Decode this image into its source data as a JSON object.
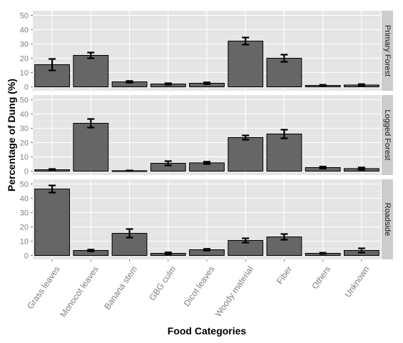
{
  "chart_data": {
    "type": "bar",
    "xlabel": "Food Categories",
    "ylabel": "Percentage of Dung (%)",
    "ylim": [
      0,
      50
    ],
    "yticks": [
      0,
      10,
      20,
      30,
      40,
      50
    ],
    "grid": true,
    "facet": "rows",
    "categories": [
      "Grass leaves",
      "Monocot leaves",
      "Banana stem",
      "GBG culm",
      "Dicot leaves",
      "Woody material",
      "Fiber",
      "Others",
      "Unknown"
    ],
    "panels": [
      {
        "name": "Primary Forest",
        "values": [
          15.5,
          22,
          3.5,
          2,
          2.5,
          32,
          20,
          1,
          1.3
        ],
        "errors": [
          4,
          2,
          0.6,
          0.5,
          0.6,
          2.5,
          2.5,
          0.4,
          0.6
        ]
      },
      {
        "name": "Logged Forest",
        "values": [
          1,
          33.5,
          0.3,
          5.5,
          5.8,
          23.5,
          26,
          2.5,
          1.8
        ],
        "errors": [
          0.5,
          3,
          0.2,
          1.5,
          0.8,
          1.5,
          3,
          0.7,
          0.8
        ]
      },
      {
        "name": "Roadside",
        "values": [
          46.5,
          3.5,
          15.5,
          1.5,
          4,
          10.5,
          13,
          1.5,
          3.5
        ],
        "errors": [
          2.5,
          0.6,
          3,
          0.7,
          0.6,
          1.5,
          2,
          0.4,
          1.5
        ]
      }
    ]
  }
}
